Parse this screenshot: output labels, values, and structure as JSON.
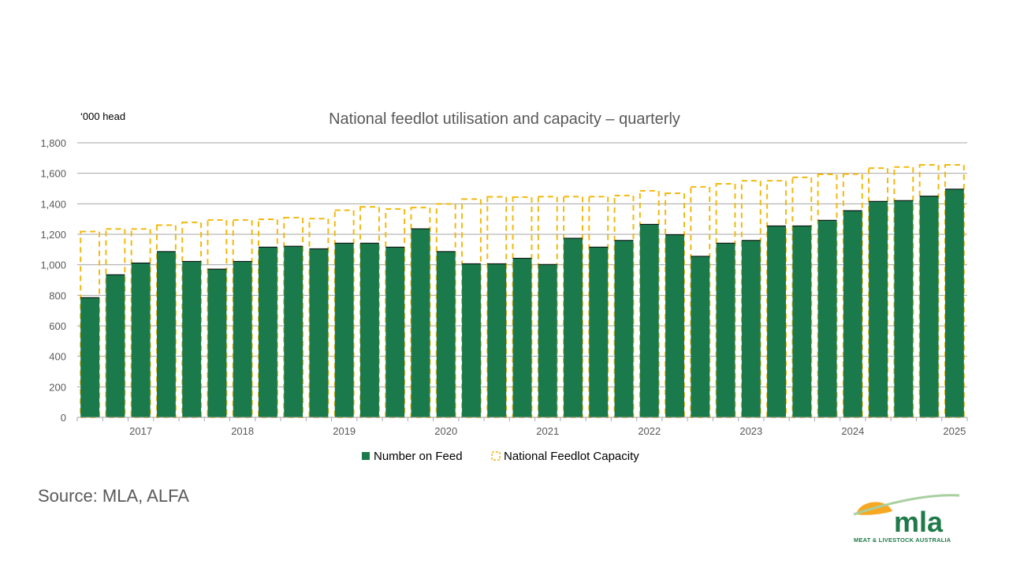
{
  "chart_data": {
    "type": "bar",
    "title": "National feedlot utilisation and capacity – quarterly",
    "unit_label": "‘000 head",
    "ylim": [
      0,
      1800
    ],
    "yticks": [
      0,
      200,
      400,
      600,
      800,
      1000,
      1200,
      1400,
      1600,
      1800
    ],
    "ytick_labels": [
      "0",
      "200",
      "400",
      "600",
      "800",
      "1,000",
      "1,200",
      "1,400",
      "1,600",
      "1,800"
    ],
    "grid": true,
    "legend_position": "bottom",
    "x_year_labels": [
      "2017",
      "2018",
      "2019",
      "2020",
      "2021",
      "2022",
      "2023",
      "2024",
      "2025"
    ],
    "x_year_label_positions": [
      2.5,
      6.5,
      10.5,
      14.5,
      18.5,
      22.5,
      26.5,
      30.5,
      34.5
    ],
    "series": [
      {
        "name": "Number on Feed",
        "style": "solid",
        "color": "#1a7a4c",
        "values": [
          785,
          935,
          1012,
          1087,
          1022,
          972,
          1022,
          1116,
          1122,
          1105,
          1142,
          1142,
          1116,
          1236,
          1087,
          1007,
          1007,
          1043,
          1002,
          1174,
          1116,
          1160,
          1265,
          1197,
          1056,
          1142,
          1160,
          1255,
          1255,
          1292,
          1355,
          1416,
          1421,
          1450,
          1496
        ]
      },
      {
        "name": "National Feedlot Capacity",
        "style": "dashed",
        "color": "#f2b90f",
        "values": [
          1218,
          1235,
          1235,
          1260,
          1278,
          1294,
          1294,
          1298,
          1309,
          1303,
          1358,
          1380,
          1366,
          1375,
          1399,
          1431,
          1446,
          1444,
          1447,
          1447,
          1447,
          1454,
          1485,
          1469,
          1511,
          1531,
          1551,
          1551,
          1573,
          1593,
          1595,
          1634,
          1641,
          1655,
          1655
        ]
      }
    ]
  },
  "footer": {
    "source": "Source: MLA, ALFA"
  },
  "logo": {
    "wordmark": "mla",
    "caption": "MEAT & LIVESTOCK AUSTRALIA"
  },
  "colors": {
    "bar": "#1a7a4c",
    "capacity": "#f2b90f",
    "grid": "#a6a6a6",
    "text": "#595959",
    "logo_green": "#1f7a4a",
    "logo_sun": "#f7a823"
  }
}
